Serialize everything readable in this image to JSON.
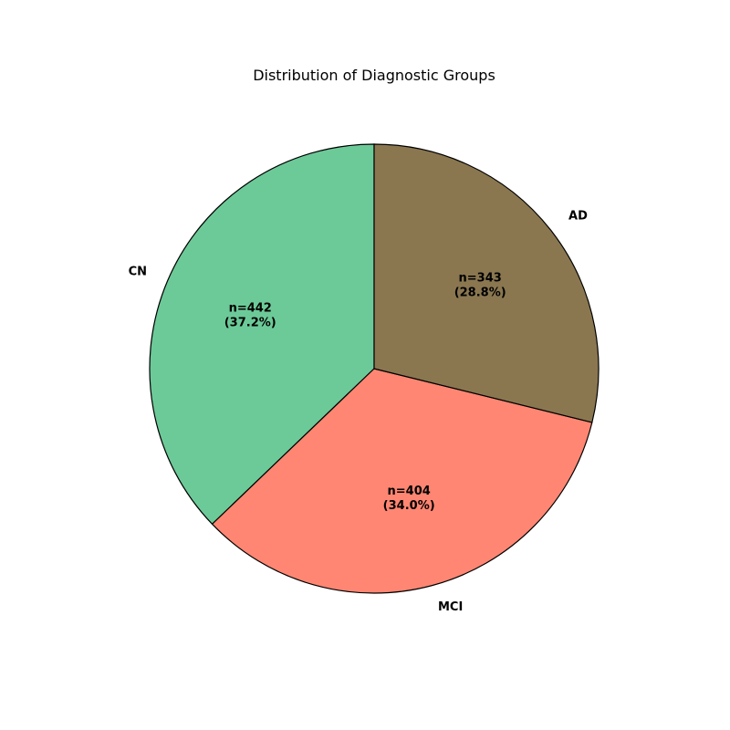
{
  "chart_data": {
    "type": "pie",
    "title": "Distribution of Diagnostic Groups",
    "start_angle_deg": 90,
    "direction": "counterclockwise",
    "slices": [
      {
        "label": "CN",
        "value": 442,
        "n_text": "n=442",
        "pct_text": "(37.2%)",
        "color": "#6cca98"
      },
      {
        "label": "MCI",
        "value": 404,
        "n_text": "n=404",
        "pct_text": "(34.0%)",
        "color": "#ff8672"
      },
      {
        "label": "AD",
        "value": 343,
        "n_text": "n=343",
        "pct_text": "(28.8%)",
        "color": "#8a7750"
      }
    ],
    "edge_color": "#000000"
  }
}
